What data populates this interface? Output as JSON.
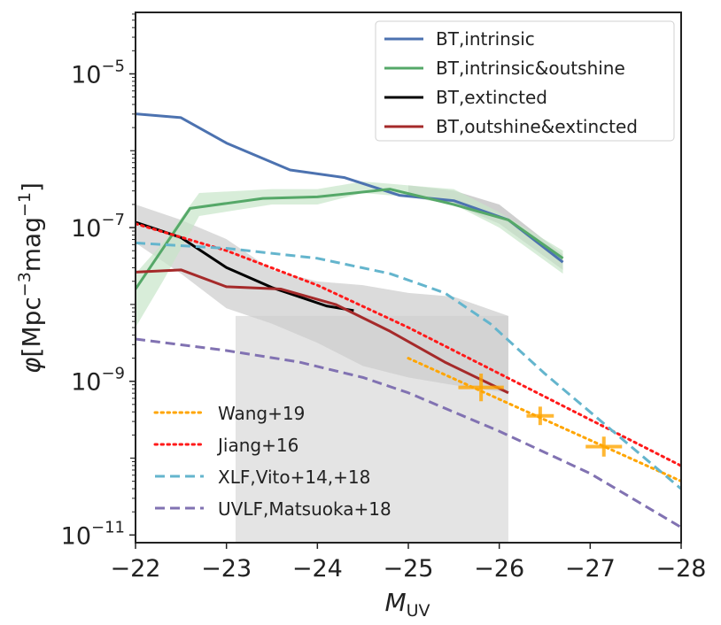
{
  "chart_data": {
    "type": "line",
    "title": "",
    "xlabel_main": "M",
    "xlabel_sub": "UV",
    "ylabel_phi": "φ",
    "ylabel_units_a": "[Mpc",
    "ylabel_sup_a": "−3",
    "ylabel_units_b": "mag",
    "ylabel_sup_b": "−1",
    "ylabel_units_c": "]",
    "xlim": [
      -22,
      -28
    ],
    "ylim_log10": [
      -11.1,
      -4.2
    ],
    "yscale": "log",
    "grid": false,
    "x_ticks": [
      {
        "value": -22,
        "label": "−22"
      },
      {
        "value": -23,
        "label": "−23"
      },
      {
        "value": -24,
        "label": "−24"
      },
      {
        "value": -25,
        "label": "−25"
      },
      {
        "value": -26,
        "label": "−26"
      },
      {
        "value": -27,
        "label": "−27"
      },
      {
        "value": -28,
        "label": "−28"
      }
    ],
    "y_ticks": [
      {
        "log10": -5,
        "base": "10",
        "exp": "−5"
      },
      {
        "log10": -7,
        "base": "10",
        "exp": "−7"
      },
      {
        "log10": -9,
        "base": "10",
        "exp": "−9"
      },
      {
        "log10": -11,
        "base": "10",
        "exp": "−11"
      }
    ],
    "shaded_regions": [
      {
        "name": "observed-magnitude-range",
        "x": [
          -23.1,
          -26.1
        ],
        "y_log10": [
          -11.1,
          -8.15
        ],
        "color": "#e4e4e4"
      }
    ],
    "bands": [
      {
        "name": "BT,extincted",
        "color": "#cccccc",
        "x": [
          -22,
          -22.5,
          -23,
          -23.5,
          -24,
          -24.5,
          -25,
          -25.5,
          -26.1
        ],
        "upper_log10": [
          -6.7,
          -6.9,
          -7.15,
          -7.55,
          -7.7,
          -7.75,
          -7.85,
          -7.9,
          -8.15
        ],
        "lower_log10": [
          -7.2,
          -7.6,
          -8.05,
          -8.25,
          -8.5,
          -8.8,
          -8.95,
          -9.05,
          -9.15
        ]
      },
      {
        "name": "BT,intrinsic",
        "color": "#bbbbbb",
        "x": [
          -25,
          -25.5,
          -26,
          -26.7
        ],
        "upper_log10": [
          -6.45,
          -6.52,
          -6.7,
          -7.35
        ],
        "lower_log10": [
          -6.6,
          -6.7,
          -6.95,
          -7.55
        ]
      },
      {
        "name": "BT,intrinsic&outshine",
        "color": "#c8e6c9",
        "x": [
          -22,
          -22.3,
          -22.7,
          -23.5,
          -24,
          -24.5,
          -25,
          -25.5,
          -26,
          -26.7
        ],
        "upper_log10": [
          -7.6,
          -7.2,
          -6.55,
          -6.5,
          -6.5,
          -6.4,
          -6.45,
          -6.5,
          -6.8,
          -7.3
        ],
        "lower_log10": [
          -8.3,
          -7.7,
          -6.85,
          -6.7,
          -6.7,
          -6.55,
          -6.6,
          -6.7,
          -7.0,
          -7.6
        ]
      }
    ],
    "series": [
      {
        "name": "BT,intrinsic",
        "color": "#4c72b0",
        "style": "solid",
        "legend": true,
        "x": [
          -22,
          -22.5,
          -23,
          -23.7,
          -24.3,
          -24.9,
          -25.5,
          -26.1,
          -26.7
        ],
        "y_log10": [
          -5.52,
          -5.57,
          -5.9,
          -6.25,
          -6.35,
          -6.58,
          -6.65,
          -6.9,
          -7.45
        ]
      },
      {
        "name": "BT,intrinsic&outshine",
        "color": "#55a868",
        "style": "solid",
        "legend": true,
        "x": [
          -22,
          -22.6,
          -23.4,
          -24,
          -24.8,
          -25.5,
          -26.1,
          -26.7
        ],
        "y_log10": [
          -7.8,
          -6.75,
          -6.62,
          -6.6,
          -6.5,
          -6.7,
          -6.9,
          -7.4
        ]
      },
      {
        "name": "BT,extincted",
        "color": "#000000",
        "style": "solid",
        "legend": true,
        "x": [
          -22,
          -22.5,
          -23,
          -23.5,
          -24.1,
          -24.4
        ],
        "y_log10": [
          -6.93,
          -7.13,
          -7.52,
          -7.78,
          -8.02,
          -8.08
        ]
      },
      {
        "name": "BT,outshine&extincted",
        "color": "#a52a2a",
        "style": "solid",
        "legend": true,
        "x": [
          -22,
          -22.5,
          -23,
          -23.6,
          -24.2,
          -24.8,
          -25.4,
          -26.1
        ],
        "y_log10": [
          -7.58,
          -7.55,
          -7.77,
          -7.8,
          -8.0,
          -8.35,
          -8.75,
          -9.15
        ]
      },
      {
        "name": "Wang+19",
        "color": "#ffa500",
        "style": "dotted",
        "legend": true,
        "x": [
          -25,
          -28
        ],
        "y_log10": [
          -8.7,
          -10.3
        ]
      },
      {
        "name": "Jiang+16",
        "color": "#ff1a1a",
        "style": "dotted",
        "legend": true,
        "x": [
          -22,
          -23,
          -24,
          -25,
          -26,
          -27,
          -28
        ],
        "y_log10": [
          -6.95,
          -7.3,
          -7.75,
          -8.3,
          -8.9,
          -9.5,
          -10.1
        ]
      },
      {
        "name": "XLF,Vito+14,+18",
        "color": "#64b5cd",
        "style": "dashed",
        "legend": true,
        "x": [
          -22,
          -23,
          -24,
          -24.8,
          -25.4,
          -25.9,
          -26.5,
          -27.2,
          -28
        ],
        "y_log10": [
          -7.2,
          -7.27,
          -7.4,
          -7.6,
          -7.85,
          -8.25,
          -8.9,
          -9.6,
          -10.4
        ]
      },
      {
        "name": "UVLF,Matsuoka+18",
        "color": "#8172b2",
        "style": "dashed",
        "legend": true,
        "x": [
          -22,
          -23,
          -23.8,
          -24.5,
          -25,
          -25.5,
          -26,
          -27,
          -28
        ],
        "y_log10": [
          -8.45,
          -8.6,
          -8.75,
          -8.95,
          -9.15,
          -9.4,
          -9.65,
          -10.2,
          -10.9
        ]
      }
    ],
    "points": [
      {
        "name": "Wang+19",
        "color": "#ffa500",
        "x": [
          -25.8,
          -26.45,
          -27.15
        ],
        "y_log10": [
          -9.08,
          -9.45,
          -9.85
        ],
        "xerr": [
          0.25,
          0.15,
          0.2
        ],
        "yerr_log10": [
          0.18,
          0.12,
          0.13
        ]
      }
    ],
    "legend_upper": [
      "BT,intrinsic",
      "BT,intrinsic&outshine",
      "BT,extincted",
      "BT,outshine&extincted"
    ],
    "legend_lower": [
      "Wang+19",
      "Jiang+16",
      "XLF,Vito+14,+18",
      "UVLF,Matsuoka+18"
    ]
  }
}
